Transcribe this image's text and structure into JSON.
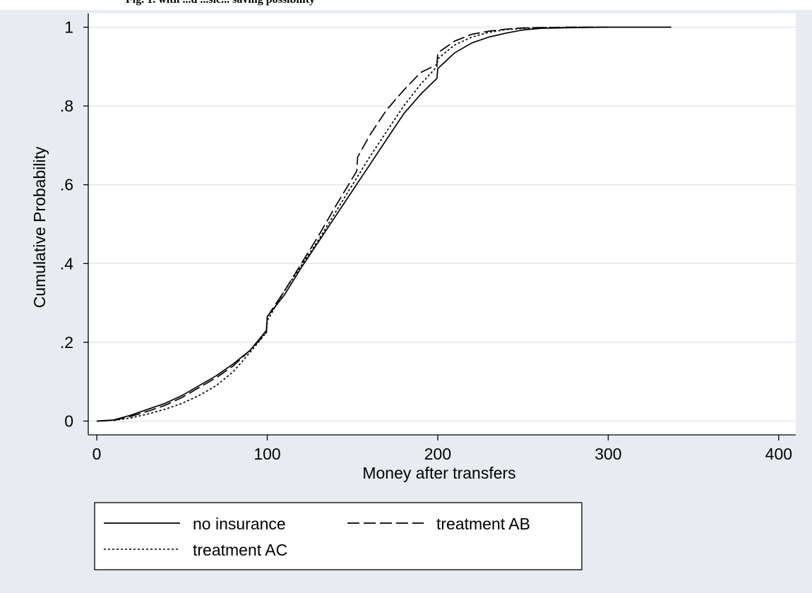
{
  "caption": {
    "text": "Fig. 1. with ...d ...sic... saving possibility"
  },
  "chart_data": {
    "type": "line",
    "title": "",
    "xlabel": "Money after transfers",
    "ylabel": "Cumulative Probability",
    "xlim": [
      -5,
      410
    ],
    "ylim": [
      -0.035,
      1.035
    ],
    "xticks": [
      0,
      100,
      200,
      300,
      400
    ],
    "xtick_labels": [
      "0",
      "100",
      "200",
      "300",
      "400"
    ],
    "yticks": [
      0,
      0.2,
      0.4,
      0.6,
      0.8,
      1
    ],
    "ytick_labels": [
      "0",
      ".2",
      ".4",
      ".6",
      ".8",
      "1"
    ],
    "grid": "horizontal",
    "legend_position": "bottom",
    "colors": {
      "plot_background": "#ffffff",
      "outer_background": "#e8ecf0",
      "gridline": "#e4e6e9",
      "line": "#000000"
    },
    "series": [
      {
        "name": "no insurance",
        "style": "solid",
        "x": [
          0,
          10,
          20,
          30,
          40,
          50,
          60,
          70,
          80,
          90,
          99.5,
          100,
          110,
          120,
          130,
          140,
          150,
          160,
          170,
          180,
          190,
          199.5,
          200,
          210,
          220,
          230,
          240,
          250,
          260,
          280,
          300,
          337
        ],
        "y": [
          0,
          0.003,
          0.015,
          0.03,
          0.045,
          0.065,
          0.09,
          0.115,
          0.145,
          0.18,
          0.23,
          0.265,
          0.32,
          0.39,
          0.455,
          0.52,
          0.585,
          0.65,
          0.715,
          0.78,
          0.83,
          0.87,
          0.895,
          0.935,
          0.96,
          0.975,
          0.985,
          0.993,
          0.997,
          0.999,
          1,
          1
        ]
      },
      {
        "name": "treatment AB",
        "style": "longdash",
        "x": [
          0,
          10,
          20,
          30,
          40,
          50,
          60,
          70,
          80,
          90,
          99.5,
          100,
          110,
          120,
          130,
          140,
          152.5,
          153,
          160,
          170,
          180,
          190,
          199.5,
          200,
          210,
          220,
          230,
          240,
          250,
          260,
          280,
          300
        ],
        "y": [
          0,
          0.002,
          0.012,
          0.025,
          0.04,
          0.06,
          0.085,
          0.11,
          0.14,
          0.18,
          0.225,
          0.265,
          0.33,
          0.4,
          0.47,
          0.545,
          0.635,
          0.67,
          0.725,
          0.79,
          0.84,
          0.885,
          0.905,
          0.935,
          0.965,
          0.982,
          0.99,
          0.995,
          0.998,
          0.999,
          1,
          1
        ]
      },
      {
        "name": "treatment AC",
        "style": "shortdash",
        "x": [
          0,
          10,
          20,
          30,
          40,
          50,
          60,
          70,
          80,
          90,
          99.5,
          100,
          110,
          120,
          130,
          140,
          150,
          160,
          170,
          180,
          190,
          199.5,
          200,
          210,
          220,
          230,
          240,
          250,
          260,
          280,
          300
        ],
        "y": [
          0,
          0.002,
          0.008,
          0.018,
          0.03,
          0.045,
          0.065,
          0.09,
          0.125,
          0.175,
          0.225,
          0.255,
          0.33,
          0.395,
          0.46,
          0.53,
          0.6,
          0.67,
          0.735,
          0.8,
          0.855,
          0.9,
          0.92,
          0.955,
          0.975,
          0.987,
          0.994,
          0.997,
          0.999,
          1,
          1
        ]
      }
    ]
  }
}
